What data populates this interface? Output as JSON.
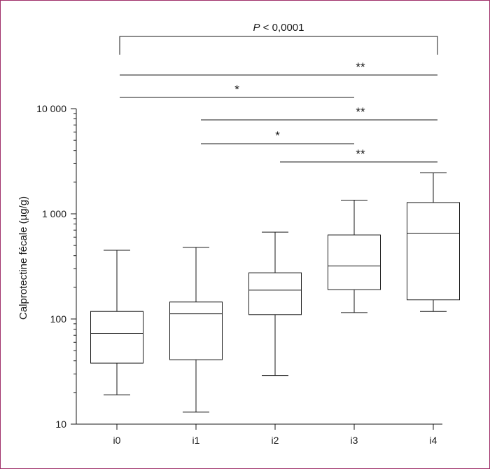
{
  "chart_data": {
    "type": "box",
    "title": "",
    "xlabel": "",
    "ylabel": "Calprotectine fécale (µg/g)",
    "yscale": "log",
    "ylim": [
      10,
      10000
    ],
    "yticks": [
      {
        "value": 10,
        "label": "10"
      },
      {
        "value": 100,
        "label": "100"
      },
      {
        "value": 1000,
        "label": "1 000"
      },
      {
        "value": 10000,
        "label": "10 000"
      }
    ],
    "categories": [
      "i0",
      "i1",
      "i2",
      "i3",
      "i4"
    ],
    "boxes": [
      {
        "category": "i0",
        "min": 19,
        "q1": 38,
        "median": 73,
        "q3": 118,
        "max": 450
      },
      {
        "category": "i1",
        "min": 13,
        "q1": 41,
        "median": 112,
        "q3": 145,
        "max": 480
      },
      {
        "category": "i2",
        "min": 29,
        "q1": 110,
        "median": 188,
        "q3": 275,
        "max": 670
      },
      {
        "category": "i3",
        "min": 115,
        "q1": 190,
        "median": 320,
        "q3": 630,
        "max": 1350
      },
      {
        "category": "i4",
        "min": 118,
        "q1": 152,
        "median": 650,
        "q3": 1280,
        "max": 2450
      }
    ],
    "overall_test": {
      "from": "i0",
      "to": "i4",
      "label_italic": "P",
      "label_rest": " < 0,0001"
    },
    "comparisons": [
      {
        "from": "i0",
        "to": "i4",
        "label": "**"
      },
      {
        "from": "i0",
        "to": "i3",
        "label": "*"
      },
      {
        "from": "i1",
        "to": "i4",
        "label": "**"
      },
      {
        "from": "i1",
        "to": "i3",
        "label": "*"
      },
      {
        "from": "i2",
        "to": "i4",
        "label": "**"
      }
    ]
  }
}
